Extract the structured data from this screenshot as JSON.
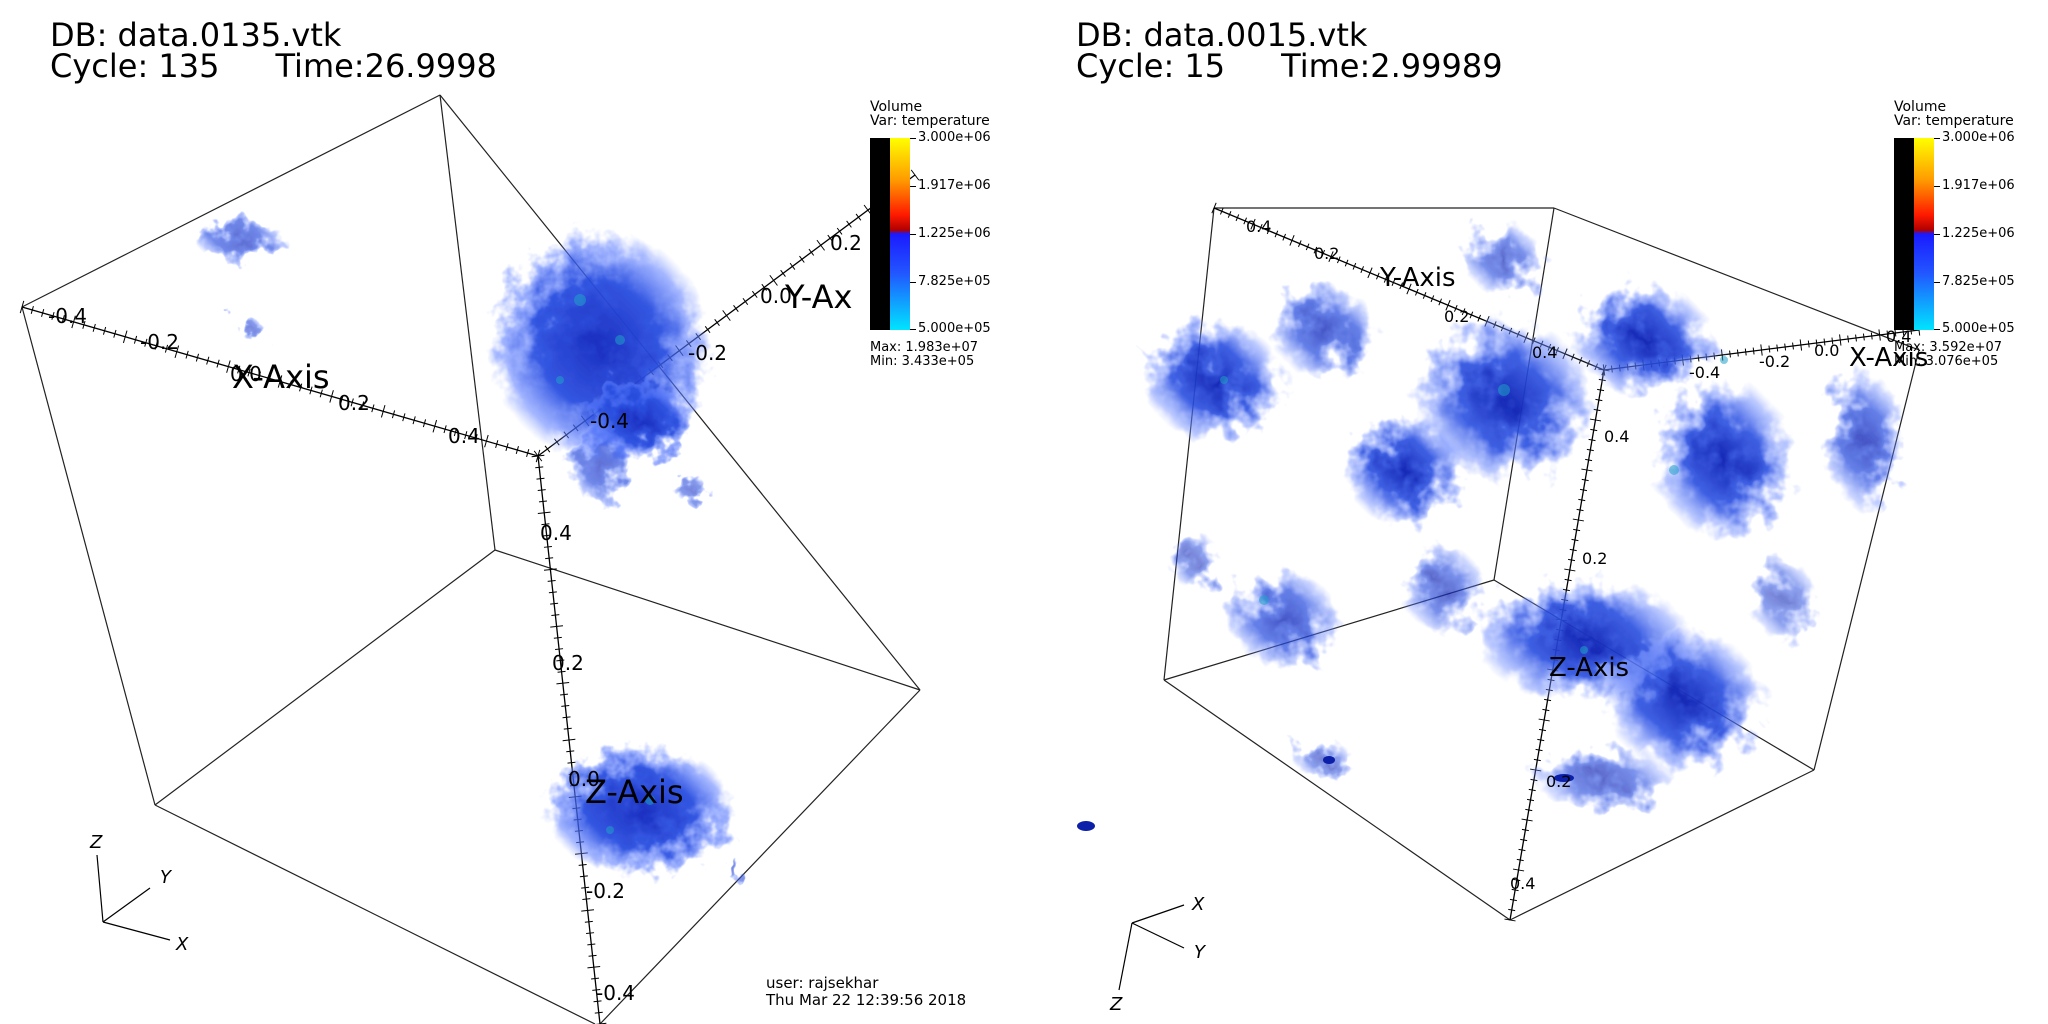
{
  "left": {
    "db": "DB: data.0135.vtk",
    "cycle": "Cycle: 135",
    "time": "Time:26.9998",
    "legend": {
      "title": "Volume",
      "var": "Var: temperature",
      "ticks": [
        "3.000e+06",
        "1.917e+06",
        "1.225e+06",
        "7.825e+05",
        "5.000e+05"
      ],
      "max": "Max:  1.983e+07",
      "min": "Min:  3.433e+05"
    },
    "axes": {
      "x_title": "X-Axis",
      "y_title": "Y-Ax",
      "z_title": "Z-Axis",
      "x_ticks": [
        "-0.4",
        "-0.2",
        "0.0",
        "0.2",
        "0.4"
      ],
      "y_ticks": [
        "-0.4",
        "-0.2",
        "0.0",
        "0.2"
      ],
      "z_ticks": [
        "0.4",
        "0.2",
        "0.0",
        "-0.2",
        "-0.4"
      ]
    },
    "triad": {
      "x": "X",
      "y": "Y",
      "z": "Z"
    },
    "user": "user: rajsekhar",
    "date": "Thu Mar 22 12:39:56 2018"
  },
  "right": {
    "db": "DB: data.0015.vtk",
    "cycle": "Cycle: 15",
    "time": "Time:2.99989",
    "legend": {
      "title": "Volume",
      "var": "Var: temperature",
      "ticks": [
        "3.000e+06",
        "1.917e+06",
        "1.225e+06",
        "7.825e+05",
        "5.000e+05"
      ],
      "max": "Max:  3.592e+07",
      "min": "Min:  3.076e+05"
    },
    "axes": {
      "x_title": "X-Axis",
      "y_title": "Y-Axis",
      "z_title": "Z-Axis",
      "x_ticks": [
        "-0.4",
        "-0.2",
        "0.0",
        "0.4"
      ],
      "y_ticks": [
        "0.4",
        "0.2",
        "0.2",
        "0.4"
      ],
      "z_ticks": [
        "0.4",
        "0.2",
        "0.2",
        "0.4"
      ]
    },
    "triad": {
      "x": "X",
      "y": "Y",
      "z": "Z"
    }
  },
  "colors": {
    "volume_dark": "#0b1fa8",
    "volume_mid": "#2a4fe0",
    "volume_light": "#8aa2ff",
    "volume_cyan": "#1fa0c8"
  }
}
